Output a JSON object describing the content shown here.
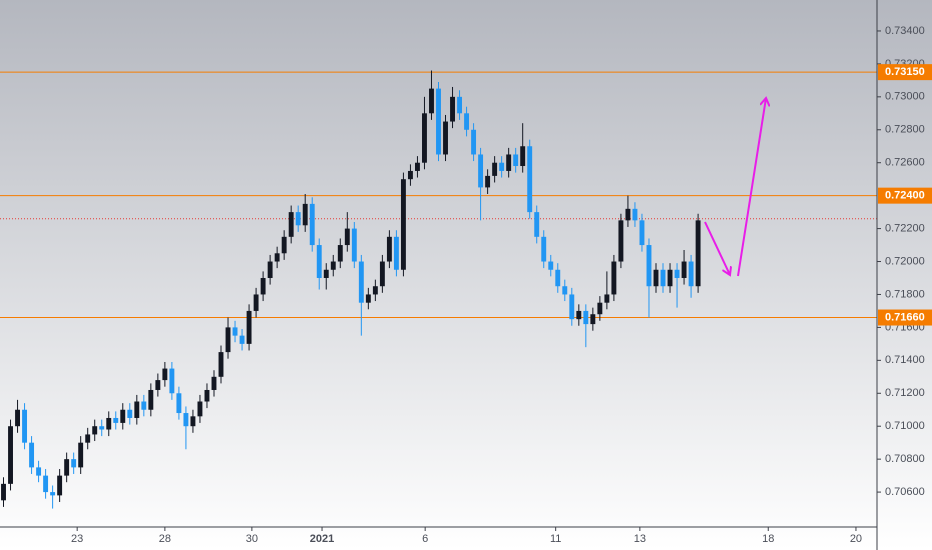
{
  "chart_data": {
    "type": "candlestick",
    "open": [
      0.7055,
      0.7065,
      0.71,
      0.711,
      0.709,
      0.7075,
      0.707,
      0.706,
      0.7058,
      0.707,
      0.708,
      0.7075,
      0.709,
      0.7095,
      0.71,
      0.7098,
      0.7105,
      0.7102,
      0.711,
      0.7105,
      0.7115,
      0.711,
      0.7122,
      0.7128,
      0.7135,
      0.712,
      0.7108,
      0.71,
      0.7106,
      0.7115,
      0.7122,
      0.713,
      0.7145,
      0.716,
      0.7155,
      0.715,
      0.717,
      0.718,
      0.719,
      0.72,
      0.7205,
      0.7215,
      0.723,
      0.7222,
      0.7235,
      0.721,
      0.719,
      0.7195,
      0.72,
      0.721,
      0.722,
      0.72,
      0.7175,
      0.718,
      0.7185,
      0.72,
      0.7215,
      0.7195,
      0.725,
      0.7255,
      0.726,
      0.729,
      0.7305,
      0.7265,
      0.7285,
      0.73,
      0.729,
      0.728,
      0.7265,
      0.7245,
      0.7252,
      0.726,
      0.7255,
      0.7265,
      0.7258,
      0.727,
      0.723,
      0.7215,
      0.72,
      0.7195,
      0.7185,
      0.718,
      0.7165,
      0.717,
      0.7162,
      0.7168,
      0.7175,
      0.718,
      0.72,
      0.7225,
      0.7232,
      0.7225,
      0.721,
      0.7185,
      0.7195,
      0.7185,
      0.7195,
      0.719,
      0.72,
      0.7185
    ],
    "high": [
      0.7069,
      0.7104,
      0.7116,
      0.7114,
      0.7094,
      0.7079,
      0.7074,
      0.7064,
      0.7074,
      0.7084,
      0.7084,
      0.7094,
      0.7099,
      0.7104,
      0.7104,
      0.7109,
      0.7109,
      0.7114,
      0.7114,
      0.7119,
      0.7119,
      0.7126,
      0.7132,
      0.7139,
      0.7139,
      0.7124,
      0.7112,
      0.711,
      0.7119,
      0.7126,
      0.7134,
      0.7149,
      0.7166,
      0.7164,
      0.7159,
      0.7174,
      0.7184,
      0.7194,
      0.7204,
      0.7209,
      0.7219,
      0.7234,
      0.7234,
      0.7241,
      0.7239,
      0.7214,
      0.7199,
      0.7204,
      0.7214,
      0.723,
      0.7224,
      0.7204,
      0.7184,
      0.7189,
      0.7204,
      0.7219,
      0.7219,
      0.7254,
      0.7259,
      0.7264,
      0.73,
      0.7316,
      0.7309,
      0.7289,
      0.7306,
      0.7304,
      0.7294,
      0.7284,
      0.7269,
      0.7256,
      0.7264,
      0.7264,
      0.7269,
      0.7269,
      0.7284,
      0.7274,
      0.7234,
      0.7219,
      0.7204,
      0.7199,
      0.7189,
      0.7184,
      0.7174,
      0.7174,
      0.7172,
      0.7179,
      0.7194,
      0.7204,
      0.7229,
      0.724,
      0.7236,
      0.7229,
      0.7214,
      0.7199,
      0.7199,
      0.7199,
      0.7199,
      0.7207,
      0.7204,
      0.7229
    ],
    "low": [
      0.7051,
      0.7061,
      0.7096,
      0.7086,
      0.7071,
      0.7066,
      0.7056,
      0.705,
      0.7054,
      0.7066,
      0.7071,
      0.7071,
      0.7086,
      0.7091,
      0.7094,
      0.7094,
      0.7098,
      0.7098,
      0.7101,
      0.7101,
      0.7106,
      0.7106,
      0.7118,
      0.7124,
      0.7116,
      0.7104,
      0.7086,
      0.7096,
      0.7102,
      0.7111,
      0.7118,
      0.7126,
      0.7141,
      0.7151,
      0.7146,
      0.7146,
      0.7166,
      0.7176,
      0.7186,
      0.7196,
      0.7201,
      0.7211,
      0.7218,
      0.7218,
      0.7206,
      0.7183,
      0.7183,
      0.7191,
      0.7196,
      0.7206,
      0.7196,
      0.7155,
      0.7171,
      0.7176,
      0.7181,
      0.7196,
      0.7191,
      0.7191,
      0.7246,
      0.7251,
      0.7256,
      0.7286,
      0.7261,
      0.7261,
      0.7281,
      0.7286,
      0.7276,
      0.7261,
      0.7225,
      0.7241,
      0.7248,
      0.7251,
      0.7251,
      0.7254,
      0.7254,
      0.7226,
      0.7211,
      0.7196,
      0.7191,
      0.7181,
      0.7176,
      0.7161,
      0.7161,
      0.7148,
      0.7158,
      0.7164,
      0.7171,
      0.7176,
      0.7196,
      0.7221,
      0.7221,
      0.7206,
      0.7166,
      0.7181,
      0.7181,
      0.7181,
      0.7172,
      0.7186,
      0.7178,
      0.7181
    ],
    "close": [
      0.7065,
      0.71,
      0.711,
      0.709,
      0.7075,
      0.707,
      0.706,
      0.7058,
      0.707,
      0.708,
      0.7075,
      0.709,
      0.7095,
      0.71,
      0.7098,
      0.7105,
      0.7102,
      0.711,
      0.7105,
      0.7115,
      0.711,
      0.7122,
      0.7128,
      0.7135,
      0.712,
      0.7108,
      0.71,
      0.7106,
      0.7115,
      0.7122,
      0.713,
      0.7145,
      0.716,
      0.7155,
      0.715,
      0.717,
      0.718,
      0.719,
      0.72,
      0.7205,
      0.7215,
      0.723,
      0.7222,
      0.7235,
      0.721,
      0.719,
      0.7195,
      0.72,
      0.721,
      0.722,
      0.72,
      0.7175,
      0.718,
      0.7185,
      0.72,
      0.7215,
      0.7195,
      0.725,
      0.7255,
      0.726,
      0.729,
      0.7305,
      0.7265,
      0.7285,
      0.73,
      0.729,
      0.728,
      0.7265,
      0.7245,
      0.7252,
      0.726,
      0.7255,
      0.7265,
      0.7258,
      0.727,
      0.723,
      0.7215,
      0.72,
      0.7195,
      0.7185,
      0.718,
      0.7165,
      0.717,
      0.7162,
      0.7168,
      0.7175,
      0.718,
      0.72,
      0.7225,
      0.7232,
      0.7225,
      0.721,
      0.7185,
      0.7195,
      0.7185,
      0.7195,
      0.719,
      0.72,
      0.7185,
      0.7225
    ],
    "up_color": "#131722",
    "down_color": "#2196f3",
    "levels": [
      {
        "value": 0.7315,
        "label": "0.73150"
      },
      {
        "value": 0.724,
        "label": "0.72400"
      },
      {
        "value": 0.7166,
        "label": "0.71660"
      }
    ],
    "level_color": "#f57c00",
    "price_line": 0.7226,
    "price_line_color": "#e53935",
    "ylim": [
      0.70388,
      0.73588
    ],
    "yticks": [
      {
        "value": 0.706,
        "label": "0.70600"
      },
      {
        "value": 0.708,
        "label": "0.70800"
      },
      {
        "value": 0.71,
        "label": "0.71000"
      },
      {
        "value": 0.712,
        "label": "0.71200"
      },
      {
        "value": 0.714,
        "label": "0.71400"
      },
      {
        "value": 0.716,
        "label": "0.71600"
      },
      {
        "value": 0.718,
        "label": "0.71800"
      },
      {
        "value": 0.72,
        "label": "0.72000"
      },
      {
        "value": 0.722,
        "label": "0.72200"
      },
      {
        "value": 0.726,
        "label": "0.72600"
      },
      {
        "value": 0.728,
        "label": "0.72800"
      },
      {
        "value": 0.73,
        "label": "0.73000"
      },
      {
        "value": 0.732,
        "label": "0.73200"
      },
      {
        "value": 0.734,
        "label": "0.73400"
      }
    ],
    "xlim": [
      0,
      125
    ],
    "xticks": [
      {
        "value": 11,
        "label": "23"
      },
      {
        "value": 23.5,
        "label": "28"
      },
      {
        "value": 35.9,
        "label": "30"
      },
      {
        "value": 45.9,
        "label": "2021"
      },
      {
        "value": 60.6,
        "label": "6"
      },
      {
        "value": 79.2,
        "label": "11"
      },
      {
        "value": 91.2,
        "label": "13"
      },
      {
        "value": 109.5,
        "label": "18"
      },
      {
        "value": 122,
        "label": "20"
      }
    ]
  }
}
